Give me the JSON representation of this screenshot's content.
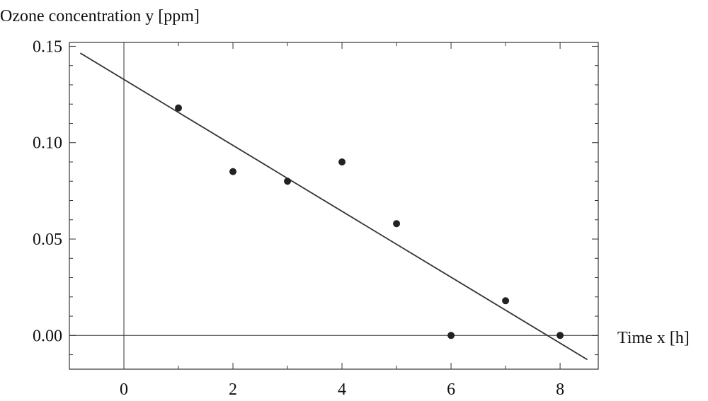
{
  "chart_data": {
    "type": "scatter",
    "ylabel": "Ozone concentration y [ppm]",
    "xlabel": "Time x [h]",
    "xlim": [
      -1,
      8.7
    ],
    "ylim": [
      -0.0175,
      0.152
    ],
    "xticks": [
      0,
      2,
      4,
      6,
      8
    ],
    "xtick_labels": [
      "0",
      "2",
      "4",
      "6",
      "8"
    ],
    "yticks": [
      0.0,
      0.05,
      0.1,
      0.15
    ],
    "ytick_labels": [
      "0.00",
      "0.05",
      "0.10",
      "0.15"
    ],
    "grid": false,
    "points": [
      {
        "x": 1,
        "y": 0.118
      },
      {
        "x": 2,
        "y": 0.085
      },
      {
        "x": 3,
        "y": 0.08
      },
      {
        "x": 4,
        "y": 0.09
      },
      {
        "x": 5,
        "y": 0.058
      },
      {
        "x": 6,
        "y": 0.0
      },
      {
        "x": 7,
        "y": 0.018
      },
      {
        "x": 8,
        "y": 0.0
      }
    ],
    "fit_line": {
      "intercept": 0.1328,
      "slope": -0.0171,
      "x_range": [
        -0.8,
        8.5
      ]
    },
    "colors": {
      "points": "#222222",
      "line": "#333333",
      "frame": "#333333"
    }
  }
}
